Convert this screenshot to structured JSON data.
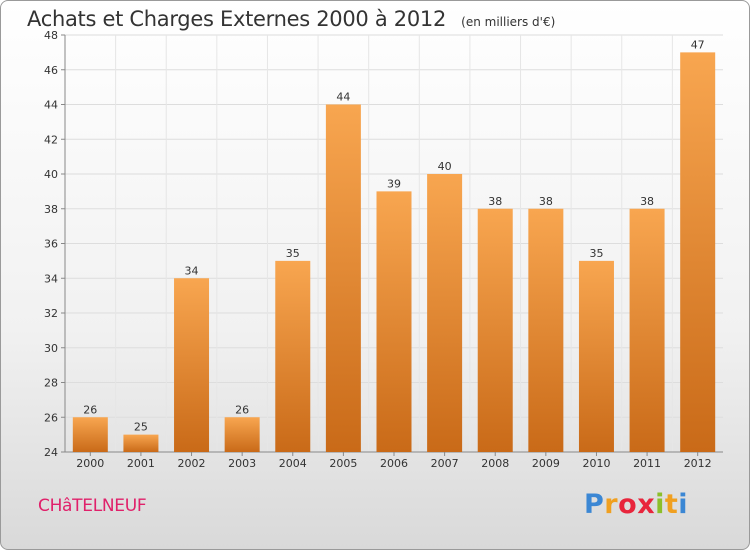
{
  "title": "Achats et Charges Externes 2000 à 2012",
  "subtitle": "(en milliers d'€)",
  "city": "CHâTELNEUF",
  "logo": {
    "text": "Proxiti",
    "letters": [
      {
        "ch": "P",
        "color": "#3b87d4"
      },
      {
        "ch": "r",
        "color": "#f0a020"
      },
      {
        "ch": "o",
        "color": "#e8253c"
      },
      {
        "ch": "x",
        "color": "#e8253c"
      },
      {
        "ch": "i",
        "color": "#8cbf2a"
      },
      {
        "ch": "t",
        "color": "#f0a020"
      },
      {
        "ch": "i",
        "color": "#3b87d4"
      }
    ]
  },
  "chart_data": {
    "type": "bar",
    "categories": [
      "2000",
      "2001",
      "2002",
      "2003",
      "2004",
      "2005",
      "2006",
      "2007",
      "2008",
      "2009",
      "2010",
      "2011",
      "2012"
    ],
    "values": [
      26,
      25,
      34,
      26,
      35,
      44,
      39,
      40,
      38,
      38,
      35,
      38,
      47
    ],
    "ylim": [
      24,
      48
    ],
    "yticks": [
      24,
      26,
      28,
      30,
      32,
      34,
      36,
      38,
      40,
      42,
      44,
      46,
      48
    ],
    "grid": true,
    "bar_color_top": "#f8a650",
    "bar_color_bottom": "#c96a18",
    "data_labels": true
  }
}
